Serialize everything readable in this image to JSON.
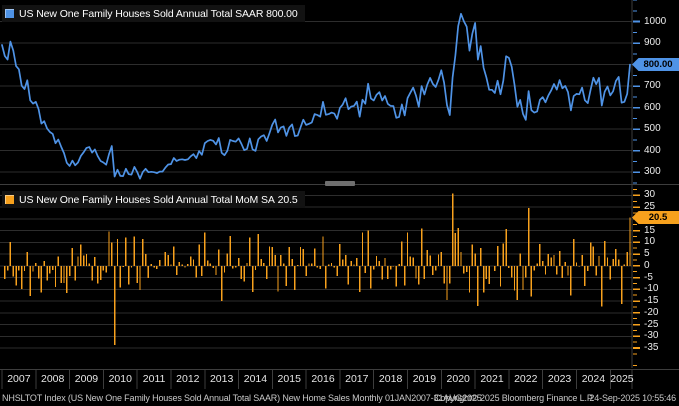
{
  "chart_data": [
    {
      "type": "line",
      "panel": "top",
      "legend_label": "US New One Family Houses Sold Annual Total SAAR",
      "legend_value": "800.00",
      "last_value_label": "800.00",
      "color": "#4f93e6",
      "axis_ticks": [
        1000,
        900,
        800,
        700,
        600,
        500,
        400,
        300
      ],
      "ylim": [
        250,
        1100
      ],
      "x_start": "2007-01",
      "x_end": "2025-08",
      "frequency": "Monthly",
      "values": [
        891,
        840,
        823,
        907,
        865,
        793,
        778,
        702,
        686,
        727,
        634,
        619,
        627,
        593,
        526,
        537,
        503,
        487,
        478,
        435,
        452,
        419,
        389,
        344,
        329,
        354,
        332,
        345,
        376,
        393,
        413,
        417,
        391,
        406,
        375,
        352,
        345,
        335,
        384,
        422,
        280,
        312,
        283,
        282,
        316,
        291,
        289,
        325,
        301,
        270,
        301,
        316,
        300,
        302,
        300,
        296,
        303,
        303,
        321,
        336,
        338,
        366,
        352,
        358,
        360,
        357,
        360,
        374,
        384,
        365,
        398,
        381,
        435,
        445,
        450,
        446,
        429,
        459,
        390,
        379,
        399,
        450,
        445,
        442,
        457,
        432,
        403,
        408,
        457,
        406,
        399,
        453,
        466,
        472,
        445,
        482,
        521,
        545,
        485,
        508,
        513,
        469,
        507,
        522,
        468,
        470,
        508,
        544,
        520,
        525,
        531,
        570,
        566,
        558,
        627,
        567,
        570,
        577,
        573,
        548,
        599,
        615,
        644,
        593,
        605,
        608,
        628,
        558,
        637,
        618,
        711,
        643,
        633,
        659,
        672,
        633,
        654,
        618,
        608,
        607,
        553,
        557,
        615,
        564,
        644,
        669,
        693,
        656,
        604,
        700,
        661,
        706,
        738,
        710,
        696,
        730,
        774,
        716,
        612,
        566,
        740,
        843,
        979,
        1036,
        1002,
        976,
        865,
        943,
        993,
        823,
        886,
        785,
        740,
        683,
        683,
        668,
        725,
        662,
        725,
        839,
        831,
        790,
        707,
        604,
        636,
        571,
        543,
        677,
        588,
        577,
        582,
        636,
        649,
        625,
        656,
        679,
        710,
        684,
        728,
        690,
        701,
        672,
        587,
        654,
        664,
        662,
        693,
        634,
        621,
        683,
        739,
        709,
        738,
        610,
        674,
        698,
        657,
        676,
        724,
        743,
        623,
        627,
        664,
        800
      ]
    },
    {
      "type": "bar",
      "panel": "bottom",
      "legend_label": "US New One Family Houses Sold Annual Total MoM SA",
      "legend_value": "20.5",
      "last_value_label": "20.5",
      "color": "#f7a11d",
      "axis_ticks": [
        30,
        25,
        20,
        15,
        10,
        5,
        0,
        -5,
        -10,
        -15,
        -20,
        -25,
        -30,
        -35
      ],
      "ylim": [
        -43.5,
        34
      ],
      "x_start": "2007-02",
      "x_end": "2025-08",
      "frequency": "Monthly",
      "values": [
        -5.7,
        -2.0,
        10.2,
        -4.6,
        -8.3,
        -1.9,
        -9.8,
        -2.3,
        6.0,
        -12.8,
        -2.4,
        1.3,
        -5.4,
        -11.3,
        2.1,
        -6.3,
        -3.2,
        -1.8,
        -9.0,
        3.9,
        -7.3,
        -7.2,
        -11.6,
        -4.4,
        7.6,
        -6.2,
        3.9,
        9.0,
        4.5,
        5.1,
        1.0,
        -6.2,
        3.8,
        -7.6,
        -6.1,
        -2.0,
        -2.9,
        14.6,
        9.9,
        -33.6,
        11.4,
        -9.3,
        -0.4,
        12.1,
        -7.9,
        -0.7,
        12.5,
        -7.4,
        -10.3,
        11.5,
        5.0,
        -5.1,
        0.7,
        -0.7,
        -1.3,
        2.4,
        0.0,
        5.9,
        4.7,
        0.6,
        8.3,
        -3.8,
        1.7,
        0.6,
        -0.8,
        0.8,
        3.9,
        2.7,
        -4.9,
        9.0,
        -4.3,
        14.2,
        2.3,
        1.1,
        -0.9,
        -3.8,
        7.0,
        -15.0,
        -2.8,
        5.3,
        12.8,
        -1.1,
        -0.7,
        3.4,
        -5.5,
        -6.7,
        1.2,
        12.0,
        -11.2,
        -1.7,
        13.5,
        2.9,
        1.3,
        -5.7,
        8.3,
        8.1,
        4.6,
        -11.0,
        4.7,
        1.0,
        -8.6,
        8.1,
        3.0,
        -10.3,
        0.4,
        8.1,
        7.1,
        -4.4,
        1.0,
        1.1,
        7.3,
        -0.7,
        -1.4,
        12.4,
        -9.6,
        0.5,
        1.2,
        -0.7,
        -4.4,
        9.3,
        2.7,
        4.7,
        -7.9,
        2.0,
        0.5,
        3.3,
        -11.1,
        14.2,
        -3.0,
        15.0,
        -9.6,
        -1.6,
        4.1,
        2.0,
        -5.8,
        3.3,
        -5.5,
        -1.6,
        -0.2,
        -8.9,
        0.7,
        10.4,
        -8.3,
        14.2,
        3.9,
        3.6,
        -5.3,
        -7.9,
        15.9,
        -5.6,
        6.8,
        4.5,
        -3.8,
        -2.0,
        4.9,
        6.0,
        -7.5,
        -14.5,
        -7.5,
        30.7,
        13.9,
        16.1,
        5.8,
        -3.3,
        -2.6,
        -11.4,
        9.0,
        5.3,
        -17.1,
        7.7,
        -11.4,
        -5.7,
        -7.7,
        0.0,
        -2.2,
        8.5,
        -8.7,
        9.5,
        15.7,
        -1.0,
        -4.9,
        -10.5,
        -14.6,
        5.3,
        -10.2,
        -4.9,
        24.7,
        -13.1,
        -1.9,
        0.9,
        9.3,
        2.0,
        -3.7,
        5.0,
        3.5,
        4.6,
        -3.7,
        6.4,
        -5.2,
        1.6,
        -4.1,
        -12.6,
        11.4,
        1.5,
        -0.3,
        4.7,
        -8.5,
        -2.1,
        10.0,
        8.2,
        -4.1,
        4.1,
        -17.3,
        10.5,
        3.6,
        -5.9,
        2.9,
        7.1,
        2.6,
        -16.2,
        0.6,
        5.9,
        20.5
      ]
    }
  ],
  "x_axis": {
    "years": [
      "2007",
      "2008",
      "2009",
      "2010",
      "2011",
      "2012",
      "2013",
      "2014",
      "2015",
      "2016",
      "2017",
      "2018",
      "2019",
      "2020",
      "2021",
      "2022",
      "2023",
      "2024",
      "2025"
    ]
  },
  "status_bar": {
    "left": "NHSLTOT Index (US New One Family Houses Sold Annual Total SAAR) New Home Sales  Monthly 01JAN2007-31AUG2025",
    "copyright": "Copyright© 2025 Bloomberg Finance L.P.",
    "timestamp": "24-Sep-2025 10:55:46"
  },
  "colors": {
    "background": "#000000",
    "grid": "#2d2d2d",
    "axis_line": "#3d3d3d",
    "tick_label": "#ececec",
    "blue": "#4f93e6",
    "orange": "#f7a11d"
  }
}
